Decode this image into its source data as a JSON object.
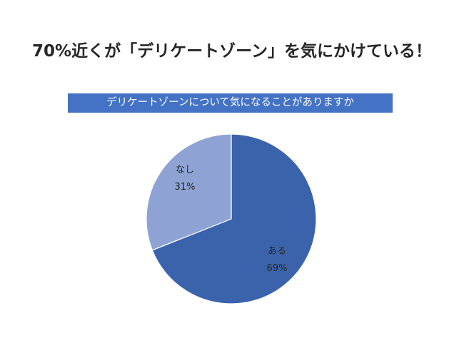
{
  "headline": "70%近くが「デリケートゾーン」を気にかけている！",
  "chart_data": {
    "type": "pie",
    "title": "デリケートゾーンについて気になることがありますか",
    "categories": [
      "ある",
      "なし"
    ],
    "values": [
      69,
      31
    ],
    "value_labels": [
      "69%",
      "31%"
    ],
    "colors": [
      "#3b63ac",
      "#8ea3d3"
    ]
  }
}
